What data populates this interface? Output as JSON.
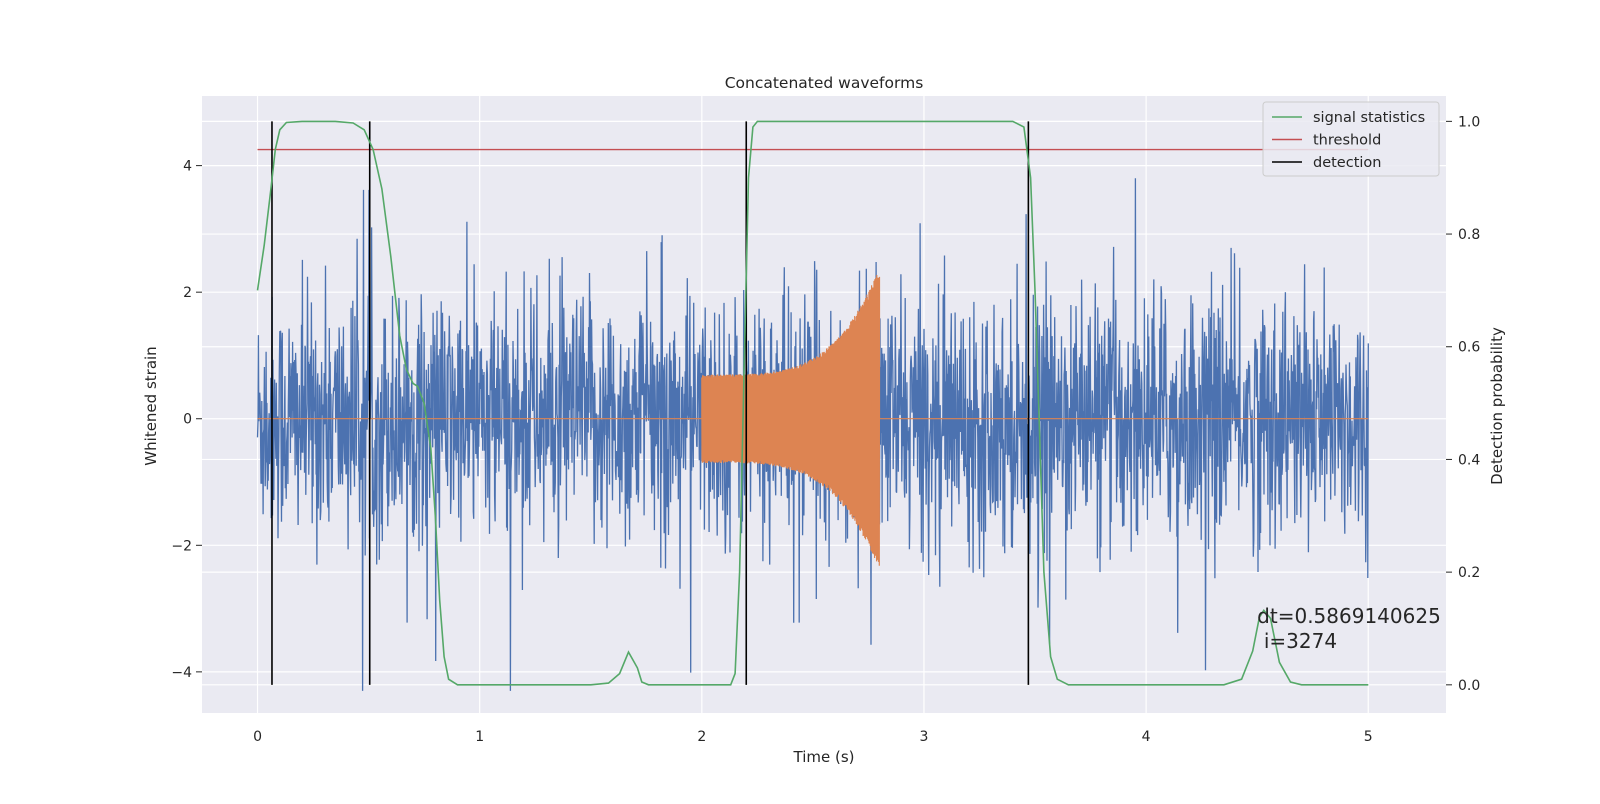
{
  "chart_data": {
    "type": "line",
    "title": "Concatenated waveforms",
    "xlabel": "Time (s)",
    "ylabel": "Whitened strain",
    "ylabel_right": "Detection probability",
    "xlim": [
      -0.25,
      5.35
    ],
    "ylim": [
      -4.65,
      5.1
    ],
    "ylim_right": [
      -0.05,
      1.045
    ],
    "x_ticks": [
      "0",
      "1",
      "2",
      "3",
      "4",
      "5"
    ],
    "x_tick_values": [
      0,
      1,
      2,
      3,
      4,
      5
    ],
    "y_ticks": [
      "−4",
      "−2",
      "0",
      "2",
      "4"
    ],
    "y_tick_values": [
      -4,
      -2,
      0,
      2,
      4
    ],
    "y_right_ticks": [
      "0.0",
      "0.2",
      "0.4",
      "0.6",
      "0.8",
      "1.0"
    ],
    "y_right_tick_values": [
      0.0,
      0.2,
      0.4,
      0.6,
      0.8,
      1.0
    ],
    "grid": true,
    "legend_position": "top-right",
    "series": [
      {
        "name": "strain",
        "axis": "left",
        "color": "#4c72b0",
        "style": "dense noise",
        "x_range": [
          0,
          5
        ],
        "envelope": {
          "typical_max": 1.4,
          "typical_min": -1.4,
          "peak_max": 3.8,
          "peak_min": -4.3
        }
      },
      {
        "name": "injected waveform",
        "axis": "left",
        "color": "#dd8452",
        "style": "chirp",
        "x_range": [
          0,
          5
        ],
        "chirp": {
          "start": 2.0,
          "end": 2.8,
          "start_amplitude": 0.7,
          "end_amplitude": 2.4
        }
      },
      {
        "name": "signal statistics",
        "axis": "right",
        "color": "#55a868",
        "points": [
          [
            0,
            0.7
          ],
          [
            0.03,
            0.78
          ],
          [
            0.06,
            0.88
          ],
          [
            0.08,
            0.95
          ],
          [
            0.1,
            0.985
          ],
          [
            0.13,
            0.998
          ],
          [
            0.2,
            1.0
          ],
          [
            0.35,
            1.0
          ],
          [
            0.43,
            0.997
          ],
          [
            0.48,
            0.985
          ],
          [
            0.52,
            0.95
          ],
          [
            0.56,
            0.88
          ],
          [
            0.6,
            0.76
          ],
          [
            0.64,
            0.62
          ],
          [
            0.67,
            0.56
          ],
          [
            0.7,
            0.535
          ],
          [
            0.72,
            0.53
          ],
          [
            0.75,
            0.5
          ],
          [
            0.78,
            0.42
          ],
          [
            0.8,
            0.3
          ],
          [
            0.82,
            0.15
          ],
          [
            0.84,
            0.05
          ],
          [
            0.86,
            0.01
          ],
          [
            0.9,
            0.0
          ],
          [
            1.5,
            0.0
          ],
          [
            1.58,
            0.003
          ],
          [
            1.63,
            0.02
          ],
          [
            1.67,
            0.058
          ],
          [
            1.71,
            0.03
          ],
          [
            1.73,
            0.005
          ],
          [
            1.76,
            0.0
          ],
          [
            2.13,
            0.0
          ],
          [
            2.15,
            0.02
          ],
          [
            2.17,
            0.2
          ],
          [
            2.19,
            0.55
          ],
          [
            2.21,
            0.9
          ],
          [
            2.23,
            0.99
          ],
          [
            2.25,
            1.0
          ],
          [
            3.4,
            1.0
          ],
          [
            3.45,
            0.99
          ],
          [
            3.48,
            0.9
          ],
          [
            3.5,
            0.7
          ],
          [
            3.52,
            0.45
          ],
          [
            3.54,
            0.2
          ],
          [
            3.57,
            0.05
          ],
          [
            3.6,
            0.01
          ],
          [
            3.65,
            0.0
          ],
          [
            4.35,
            0.0
          ],
          [
            4.43,
            0.01
          ],
          [
            4.48,
            0.06
          ],
          [
            4.51,
            0.12
          ],
          [
            4.53,
            0.132
          ],
          [
            4.56,
            0.118
          ],
          [
            4.6,
            0.04
          ],
          [
            4.65,
            0.005
          ],
          [
            4.7,
            0.0
          ],
          [
            5.0,
            0.0
          ]
        ]
      },
      {
        "name": "threshold",
        "axis": "right",
        "color": "#c44e52",
        "value": 0.95,
        "x_range": [
          0,
          5
        ]
      },
      {
        "name": "detection",
        "axis": "right",
        "color": "#000000",
        "x_values": [
          0.065,
          0.505,
          2.2,
          3.47
        ],
        "span": [
          0.0,
          1.0
        ]
      }
    ],
    "annotations": [
      {
        "text": "dt=0.5869140625",
        "x": 4.5,
        "y": 0.11
      },
      {
        "text": "i=3274",
        "x": 4.53,
        "y": 0.065
      }
    ],
    "legend": [
      "signal statistics",
      "threshold",
      "detection"
    ]
  },
  "colors": {
    "plot_background": "#eaeaf2",
    "grid": "#ffffff",
    "strain": "#4c72b0",
    "waveform": "#dd8452",
    "statistic": "#55a868",
    "threshold": "#c44e52",
    "detection": "#000000"
  }
}
